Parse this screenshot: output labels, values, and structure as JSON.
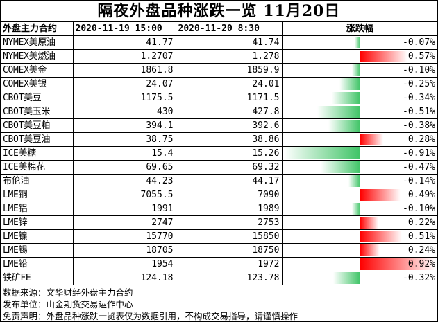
{
  "title": "隔夜外盘品种涨跌一览 11月20日",
  "headers": {
    "name": "外盘主力合约",
    "prev": "2020-11-19 15:00",
    "curr": "2020-11-20 8:30",
    "change": "涨跌幅"
  },
  "colors": {
    "down": "#3fc466",
    "up": "#ff0000"
  },
  "rows": [
    {
      "name": "NYMEX美原油",
      "prev": "41.77",
      "curr": "41.74",
      "change": "-0.07%",
      "pct": -0.07
    },
    {
      "name": "NYMEX美燃油",
      "prev": "1.2707",
      "curr": "1.278",
      "change": "0.57%",
      "pct": 0.57
    },
    {
      "name": "COMEX美金",
      "prev": "1861.8",
      "curr": "1859.9",
      "change": "-0.10%",
      "pct": -0.1
    },
    {
      "name": "COMEX美银",
      "prev": "24.07",
      "curr": "24.01",
      "change": "-0.25%",
      "pct": -0.25
    },
    {
      "name": "CBOT美豆",
      "prev": "1175.5",
      "curr": "1171.5",
      "change": "-0.34%",
      "pct": -0.34
    },
    {
      "name": "CBOT美玉米",
      "prev": "430",
      "curr": "427.8",
      "change": "-0.51%",
      "pct": -0.51
    },
    {
      "name": "CBOT美豆粕",
      "prev": "394.1",
      "curr": "392.6",
      "change": "-0.38%",
      "pct": -0.38
    },
    {
      "name": "CBOT美豆油",
      "prev": "38.75",
      "curr": "38.86",
      "change": "0.28%",
      "pct": 0.28
    },
    {
      "name": "ICE美糖",
      "prev": "15.4",
      "curr": "15.26",
      "change": "-0.91%",
      "pct": -0.91
    },
    {
      "name": "ICE美棉花",
      "prev": "69.65",
      "curr": "69.32",
      "change": "-0.47%",
      "pct": -0.47
    },
    {
      "name": "布伦油",
      "prev": "44.23",
      "curr": "44.17",
      "change": "-0.14%",
      "pct": -0.14
    },
    {
      "name": "LME铜",
      "prev": "7055.5",
      "curr": "7090",
      "change": "0.49%",
      "pct": 0.49
    },
    {
      "name": "LME铝",
      "prev": "1991",
      "curr": "1989",
      "change": "-0.10%",
      "pct": -0.1
    },
    {
      "name": "LME锌",
      "prev": "2747",
      "curr": "2753",
      "change": "0.22%",
      "pct": 0.22
    },
    {
      "name": "LME镍",
      "prev": "15770",
      "curr": "15850",
      "change": "0.51%",
      "pct": 0.51
    },
    {
      "name": "LME锡",
      "prev": "18705",
      "curr": "18750",
      "change": "0.24%",
      "pct": 0.24
    },
    {
      "name": "LME铅",
      "prev": "1954",
      "curr": "1972",
      "change": "0.92%",
      "pct": 0.92
    },
    {
      "name": "铁矿FE",
      "prev": "124.18",
      "curr": "123.78",
      "change": "-0.32%",
      "pct": -0.32
    }
  ],
  "footer": {
    "source": "数据来源：文华财经外盘主力合约",
    "publisher": "发布单位：山金期货交易运作中心",
    "disclaimer": "免责声明：外盘品种涨跌一览表仅为数据引用，不构成交易指导，请谨慎操作"
  }
}
